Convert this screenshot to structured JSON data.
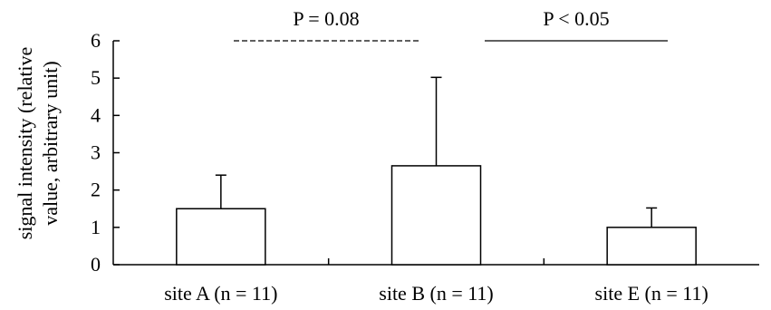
{
  "chart_data": {
    "type": "bar",
    "title": "",
    "ylabel_line1": "signal intensity (relative",
    "ylabel_line2": "value, arbitrary unit)",
    "xlabel": "",
    "categories": [
      "site A (n = 11)",
      "site B (n = 11)",
      "site E (n = 11)"
    ],
    "values": [
      1.5,
      2.65,
      1.0
    ],
    "error_upper": [
      2.4,
      5.02,
      1.52
    ],
    "ylim": [
      0,
      6
    ],
    "yticks": [
      "0",
      "1",
      "2",
      "3",
      "4",
      "5",
      "6"
    ],
    "grid": false,
    "legend": "none",
    "bar_fill": "#ffffff",
    "bar_stroke": "#000000",
    "annotations": [
      {
        "text": "P = 0.08",
        "from_category": 0,
        "to_category": 1,
        "line_style": "dashed",
        "level": 6.0
      },
      {
        "text": "P < 0.05",
        "from_category": 1,
        "to_category": 2,
        "line_style": "solid",
        "level": 6.0
      }
    ]
  }
}
